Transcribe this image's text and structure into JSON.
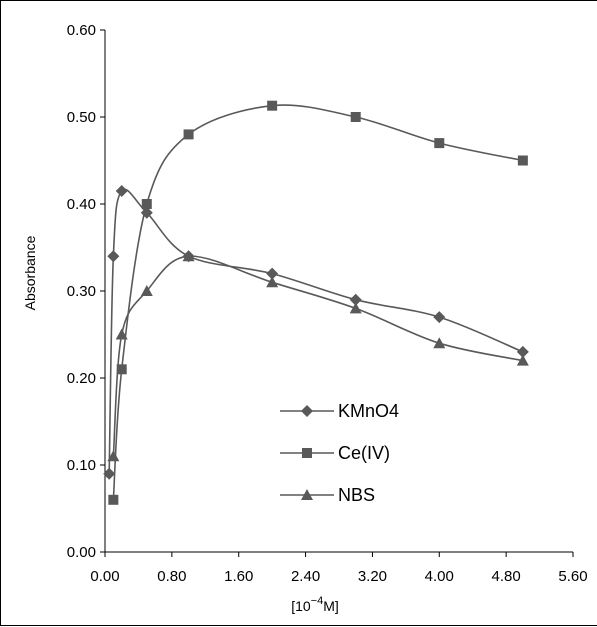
{
  "chart_data": {
    "type": "line",
    "title": "",
    "xlabel_parts": [
      "[10",
      "−4",
      "M]"
    ],
    "ylabel": "Absorbance",
    "xlim": [
      0,
      5.6
    ],
    "ylim": [
      0,
      0.6
    ],
    "xticks": [
      0,
      0.8,
      1.6,
      2.4,
      3.2,
      4.0,
      4.8,
      5.6
    ],
    "xtick_labels": [
      "0.00",
      "0.80",
      "1.60",
      "2.40",
      "3.20",
      "4.00",
      "4.80",
      "5.60"
    ],
    "yticks": [
      0,
      0.1,
      0.2,
      0.3,
      0.4,
      0.5,
      0.6
    ],
    "ytick_labels": [
      "0.00",
      "0.10",
      "0.20",
      "0.30",
      "0.40",
      "0.50",
      "0.60"
    ],
    "grid": false,
    "legend_position": "center-right",
    "series": [
      {
        "name": "KMnO4",
        "marker": "diamond",
        "color": "#595959",
        "x": [
          0.05,
          0.1,
          0.2,
          0.5,
          1.0,
          2.0,
          3.0,
          4.0,
          5.0
        ],
        "y": [
          0.09,
          0.34,
          0.415,
          0.39,
          0.34,
          0.32,
          0.29,
          0.27,
          0.23
        ]
      },
      {
        "name": "Ce(IV)",
        "marker": "square",
        "color": "#595959",
        "x": [
          0.1,
          0.2,
          0.5,
          1.0,
          2.0,
          3.0,
          4.0,
          5.0
        ],
        "y": [
          0.06,
          0.21,
          0.4,
          0.48,
          0.513,
          0.5,
          0.47,
          0.45
        ]
      },
      {
        "name": "NBS",
        "marker": "triangle",
        "color": "#595959",
        "x": [
          0.1,
          0.2,
          0.5,
          1.0,
          2.0,
          3.0,
          4.0,
          5.0
        ],
        "y": [
          0.11,
          0.25,
          0.3,
          0.34,
          0.31,
          0.28,
          0.24,
          0.22
        ]
      }
    ]
  }
}
